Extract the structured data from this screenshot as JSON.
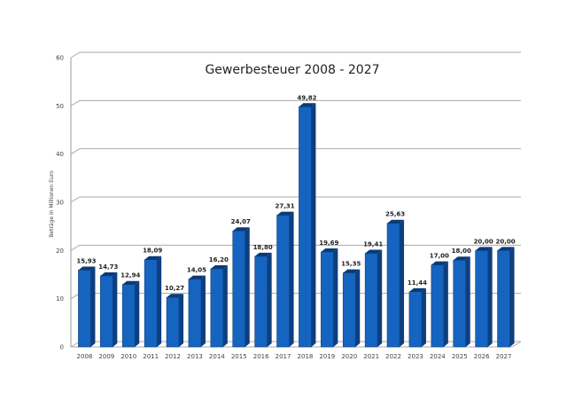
{
  "chart_data": {
    "type": "bar",
    "title": "Gewerbesteuer 2008 - 2027",
    "xlabel": "",
    "ylabel": "Beträge in Millionen Euro",
    "ylim": [
      0,
      60
    ],
    "yticks": [
      0,
      10,
      20,
      30,
      40,
      50,
      60
    ],
    "grid": true,
    "legend": null,
    "style": "3d-column",
    "bar_color": "#1565c0",
    "categories": [
      "2008",
      "2009",
      "2010",
      "2011",
      "2012",
      "2013",
      "2014",
      "2015",
      "2016",
      "2017",
      "2018",
      "2019",
      "2020",
      "2021",
      "2022",
      "2023",
      "2024",
      "2025",
      "2026",
      "2027"
    ],
    "values": [
      15.93,
      14.73,
      12.94,
      18.09,
      10.27,
      14.05,
      16.2,
      24.07,
      18.8,
      27.31,
      49.82,
      19.69,
      15.35,
      19.41,
      25.63,
      11.44,
      17.0,
      18.0,
      20.0,
      20.0
    ],
    "value_labels": [
      "15,93",
      "14,73",
      "12,94",
      "18,09",
      "10,27",
      "14,05",
      "16,20",
      "24,07",
      "18,80",
      "27,31",
      "49,82",
      "19,69",
      "15,35",
      "19,41",
      "25,63",
      "11,44",
      "17,00",
      "18,00",
      "20,00",
      "20,00"
    ]
  }
}
